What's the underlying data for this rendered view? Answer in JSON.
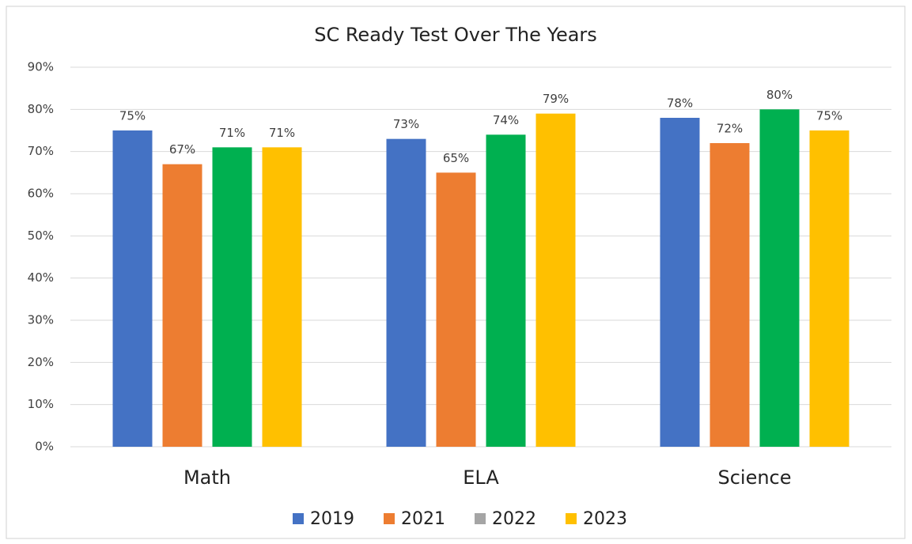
{
  "chart_data": {
    "type": "bar",
    "title": "SC Ready Test Over The Years",
    "categories": [
      "Math",
      "ELA",
      "Science"
    ],
    "series": [
      {
        "name": "2019",
        "color": "#4472c4",
        "legend_color": "#4472c4",
        "values": [
          75,
          73,
          78
        ],
        "value_labels": [
          "75%",
          "73%",
          "78%"
        ]
      },
      {
        "name": "2021",
        "color": "#ed7d31",
        "legend_color": "#ed7d31",
        "values": [
          67,
          65,
          72
        ],
        "value_labels": [
          "67%",
          "65%",
          "72%"
        ]
      },
      {
        "name": "2022",
        "color": "#00b050",
        "legend_color": "#a5a5a5",
        "values": [
          71,
          74,
          80
        ],
        "value_labels": [
          "71%",
          "74%",
          "80%"
        ]
      },
      {
        "name": "2023",
        "color": "#ffc000",
        "legend_color": "#ffc000",
        "values": [
          71,
          79,
          75
        ],
        "value_labels": [
          "71%",
          "79%",
          "75%"
        ]
      }
    ],
    "ylim": [
      0,
      90
    ],
    "yticks": [
      {
        "value": 0,
        "label": "0%"
      },
      {
        "value": 10,
        "label": "10%"
      },
      {
        "value": 20,
        "label": "20%"
      },
      {
        "value": 30,
        "label": "30%"
      },
      {
        "value": 40,
        "label": "40%"
      },
      {
        "value": 50,
        "label": "50%"
      },
      {
        "value": 60,
        "label": "60%"
      },
      {
        "value": 70,
        "label": "70%"
      },
      {
        "value": 80,
        "label": "80%"
      },
      {
        "value": 90,
        "label": "90%"
      }
    ],
    "grid": true,
    "legend": "bottom"
  }
}
